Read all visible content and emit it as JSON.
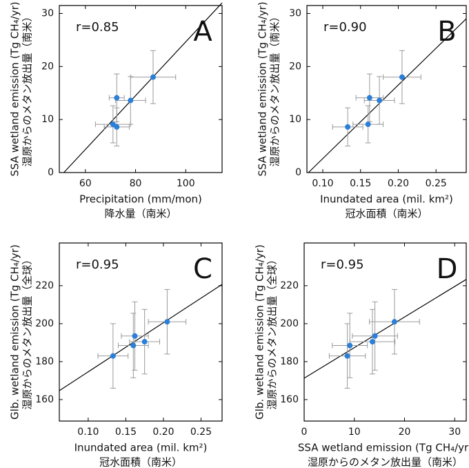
{
  "chart_data": [
    {
      "type": "scatter",
      "panel_label": "A",
      "annotation": "r=0.85",
      "xlabel": [
        "Precipitation (mm/mon)",
        "降水量（南米）"
      ],
      "ylabel": [
        "SSA wetland emission (Tg CH₄/yr)",
        "湿原からのメタン放出量（南米）"
      ],
      "x": [
        72.5,
        87,
        78,
        71,
        72.5
      ],
      "y": [
        14.1,
        18,
        13.6,
        9.1,
        8.6
      ],
      "xerr": [
        3,
        9,
        6,
        7,
        5
      ],
      "yerr": [
        4.5,
        5,
        4.5,
        3.5,
        3.6
      ],
      "color": "#2a7fd8",
      "fit_x": [
        51.4,
        114.5
      ],
      "fit_y": [
        0,
        32
      ],
      "xlim": [
        49.6,
        114.5
      ],
      "ylim": [
        0,
        31.5
      ],
      "xticks": [
        60,
        80,
        100
      ],
      "yticks": [
        0,
        10,
        20,
        30
      ]
    },
    {
      "type": "scatter",
      "panel_label": "B",
      "annotation": "r=0.90",
      "xlabel": [
        "Inundated area (mil. km²)",
        "冠水面積（南米）"
      ],
      "ylabel": [
        "SSA wetland emission (Tg CH₄/yr)",
        "湿原からのメタン放出量（南米）"
      ],
      "x": [
        0.133,
        0.16,
        0.162,
        0.175,
        0.205
      ],
      "y": [
        8.6,
        9.1,
        14.1,
        13.6,
        18
      ],
      "xerr": [
        0.02,
        0.02,
        0.018,
        0.02,
        0.025
      ],
      "yerr": [
        3.6,
        3.5,
        4.5,
        4.5,
        5
      ],
      "color": "#2a7fd8",
      "fit_x": [
        0.081,
        0.29
      ],
      "fit_y": [
        0,
        29
      ],
      "xlim": [
        0.079,
        0.29
      ],
      "ylim": [
        0,
        31.5
      ],
      "xticks": [
        {
          "value": 0.1,
          "label": "0.10"
        },
        {
          "value": 0.15,
          "label": "0.15"
        },
        {
          "value": 0.2,
          "label": "0.20"
        },
        {
          "value": 0.25,
          "label": "0.25"
        }
      ],
      "yticks": [
        0,
        10,
        20,
        30
      ]
    },
    {
      "type": "scatter",
      "panel_label": "C",
      "annotation": "r=0.95",
      "xlabel": [
        "Inundated area (mil. km²)",
        "冠水面積（南米）"
      ],
      "ylabel": [
        "Glb. wetland emission (Tg CH₄/yr)",
        "湿原からのメタン放出量（全球）"
      ],
      "x": [
        0.133,
        0.16,
        0.162,
        0.175,
        0.205
      ],
      "y": [
        183,
        188.5,
        193.5,
        190.5,
        201
      ],
      "xerr": [
        0.02,
        0.02,
        0.018,
        0.02,
        0.025
      ],
      "yerr": [
        17,
        17,
        18,
        17,
        17
      ],
      "color": "#2a7fd8",
      "fit_x": [
        0.0616,
        0.278
      ],
      "fit_y": [
        164.7,
        220.7
      ],
      "xlim": [
        0.0616,
        0.278
      ],
      "ylim": [
        148.7,
        242.5
      ],
      "xticks": [
        {
          "value": 0.1,
          "label": "0.10"
        },
        {
          "value": 0.15,
          "label": "0.15"
        },
        {
          "value": 0.2,
          "label": "0.20"
        },
        {
          "value": 0.25,
          "label": "0.25"
        }
      ],
      "yticks": [
        160,
        180,
        200,
        220
      ]
    },
    {
      "type": "scatter",
      "panel_label": "D",
      "annotation": "r=0.95",
      "xlabel": [
        "SSA wetland emission (Tg CH₄/yr)",
        "湿原からのメタン放出量（南米）"
      ],
      "ylabel": [
        "Glb. wetland emission (Tg CH₄/yr)",
        "湿原からのメタン放出量（全球）"
      ],
      "x": [
        8.6,
        9.1,
        13.6,
        14.1,
        18
      ],
      "y": [
        183,
        188.5,
        190.5,
        193.5,
        201
      ],
      "xerr": [
        3.6,
        3.5,
        4.5,
        4.5,
        5
      ],
      "yerr": [
        17,
        17,
        17,
        18,
        17
      ],
      "color": "#2a7fd8",
      "fit_x": [
        0,
        32.3
      ],
      "fit_y": [
        171.3,
        223.3
      ],
      "xlim": [
        0,
        32.3
      ],
      "ylim": [
        148.7,
        242.5
      ],
      "xticks": [
        0,
        10,
        20,
        30
      ],
      "yticks": [
        160,
        180,
        200,
        220
      ]
    }
  ]
}
